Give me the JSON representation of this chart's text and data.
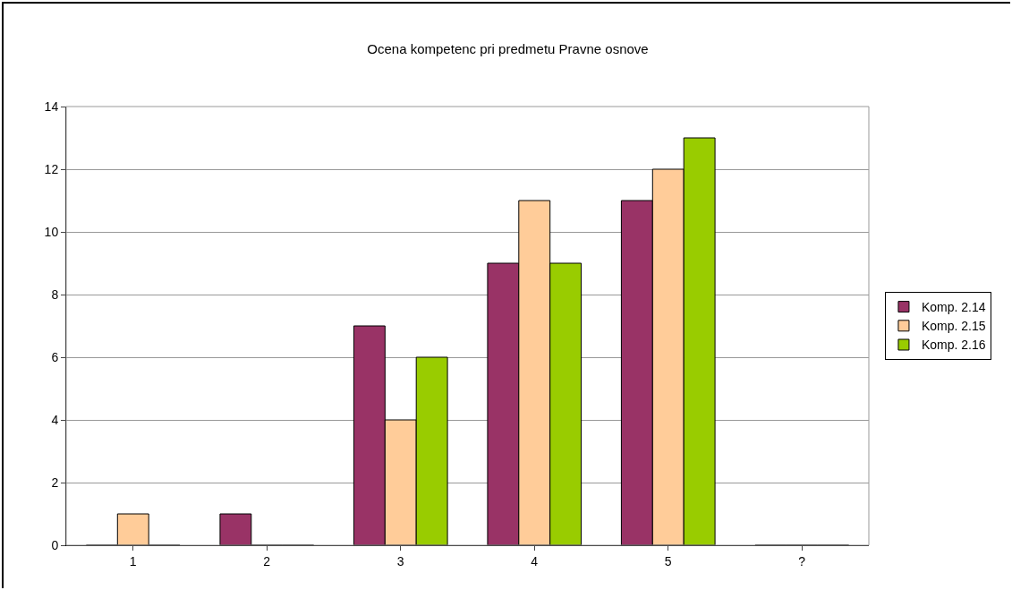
{
  "chart_data": {
    "type": "bar",
    "title": "Ocena kompetenc pri predmetu Pravne osnove",
    "categories": [
      "1",
      "2",
      "3",
      "4",
      "5",
      "?"
    ],
    "series": [
      {
        "name": "Komp. 2.14",
        "color": "#993366",
        "values": [
          0,
          1,
          7,
          9,
          11,
          0
        ]
      },
      {
        "name": "Komp. 2.15",
        "color": "#ffcc99",
        "values": [
          1,
          0,
          4,
          11,
          12,
          0
        ]
      },
      {
        "name": "Komp. 2.16",
        "color": "#99cc00",
        "values": [
          0,
          0,
          6,
          9,
          13,
          0
        ]
      }
    ],
    "ylim": [
      0,
      14
    ],
    "yticks": [
      0,
      2,
      4,
      6,
      8,
      10,
      12,
      14
    ],
    "grid": "y",
    "legend": "right"
  }
}
